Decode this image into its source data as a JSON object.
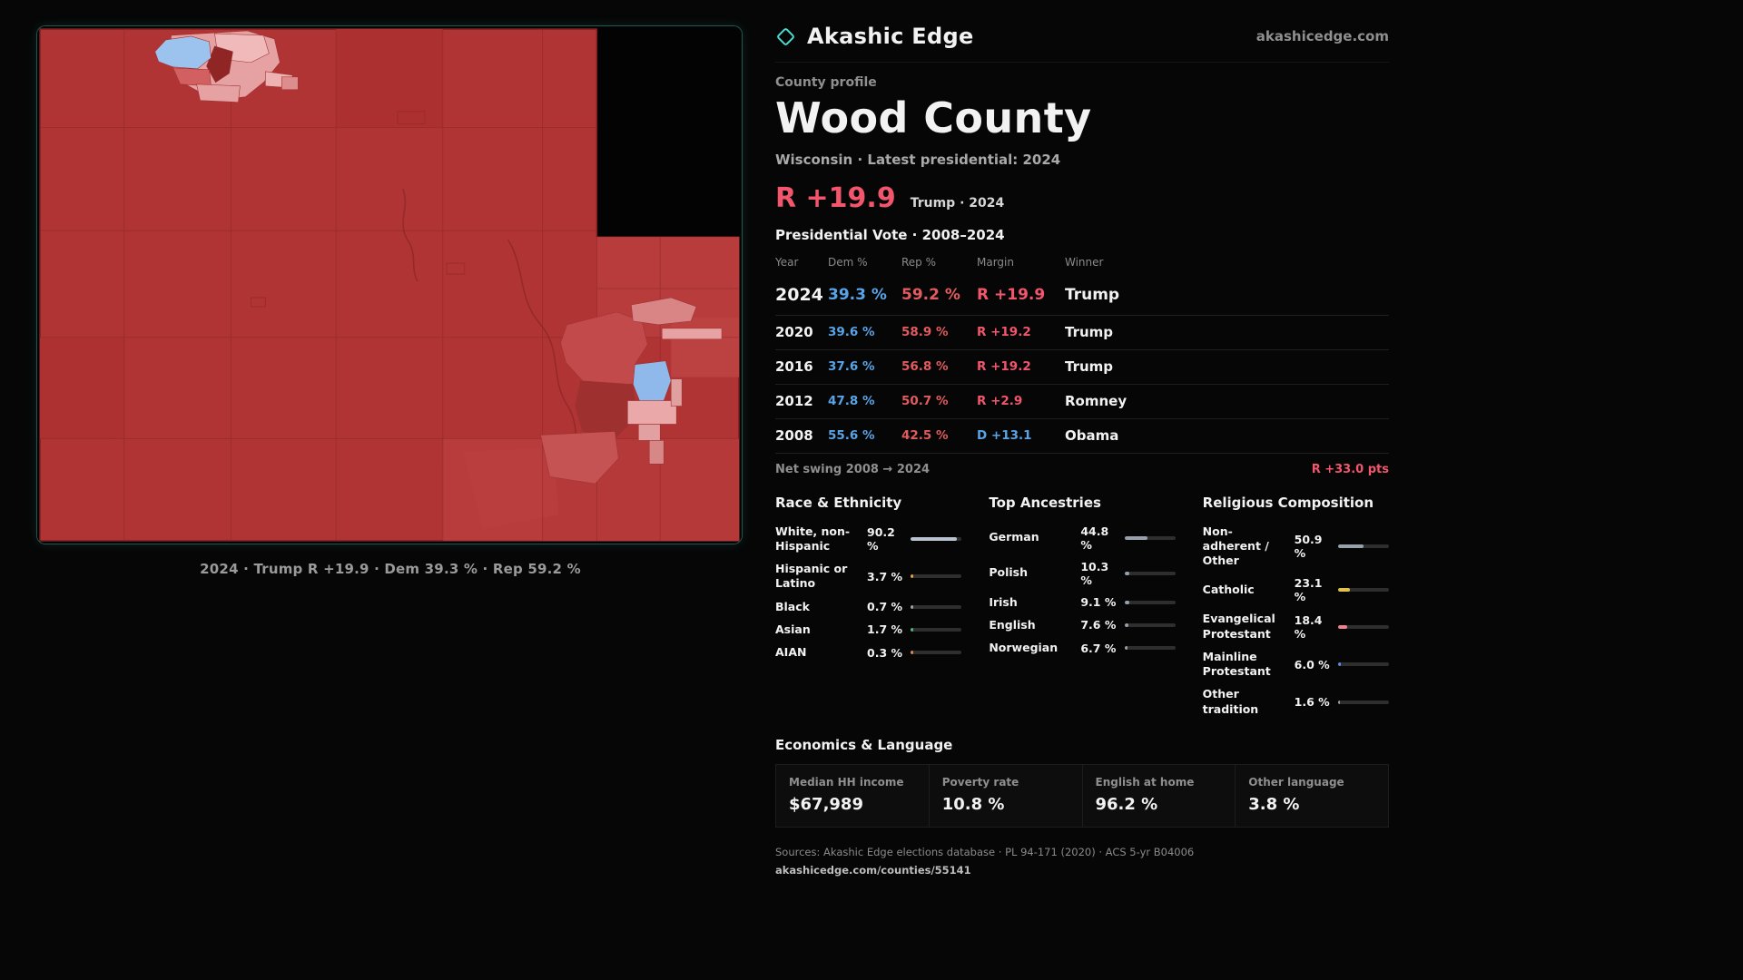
{
  "theme": {
    "bg": "#060606",
    "accent_red": "#f2566c",
    "dem_blue": "#58a4e8",
    "rep_red": "#e25b5e",
    "teal": "#49ded2",
    "muted": "#8f8f8f"
  },
  "header": {
    "brand": "Akashic Edge",
    "site": "akashicedge.com"
  },
  "profile": {
    "kicker": "County profile",
    "title": "Wood County",
    "subtitle": "Wisconsin · Latest presidential: 2024",
    "headline_margin": "R +19.9",
    "headline_note": "Trump · 2024"
  },
  "map": {
    "caption": "2024 · Trump R +19.9 · Dem 39.3 % · Rep 59.2 %"
  },
  "vote_table": {
    "title": "Presidential Vote · 2008–2024",
    "columns": [
      "Year",
      "Dem %",
      "Rep %",
      "Margin",
      "Winner"
    ],
    "rows": [
      {
        "year": "2024",
        "dem": "39.3 %",
        "rep": "59.2 %",
        "margin": "R +19.9",
        "winner": "Trump"
      },
      {
        "year": "2020",
        "dem": "39.6 %",
        "rep": "58.9 %",
        "margin": "R +19.2",
        "winner": "Trump"
      },
      {
        "year": "2016",
        "dem": "37.6 %",
        "rep": "56.8 %",
        "margin": "R +19.2",
        "winner": "Trump"
      },
      {
        "year": "2012",
        "dem": "47.8 %",
        "rep": "50.7 %",
        "margin": "R +2.9",
        "winner": "Romney"
      },
      {
        "year": "2008",
        "dem": "55.6 %",
        "rep": "42.5 %",
        "margin": "D +13.1",
        "winner": "Obama"
      }
    ],
    "net_swing_label": "Net swing 2008 → 2024",
    "net_swing_value": "R +33.0 pts"
  },
  "demographics": {
    "race": {
      "title": "Race & Ethnicity",
      "rows": [
        {
          "label": "White, non-Hispanic",
          "value": "90.2 %",
          "pct": 90.2,
          "color": "#b9c3cf"
        },
        {
          "label": "Hispanic or Latino",
          "value": "3.7 %",
          "pct": 3.7,
          "color": "#e2a23f"
        },
        {
          "label": "Black",
          "value": "0.7 %",
          "pct": 0.7,
          "color": "#9aa3ad"
        },
        {
          "label": "Asian",
          "value": "1.7 %",
          "pct": 1.7,
          "color": "#4db87e"
        },
        {
          "label": "AIAN",
          "value": "0.3 %",
          "pct": 0.3,
          "color": "#de8a4a"
        }
      ]
    },
    "ancestries": {
      "title": "Top Ancestries",
      "rows": [
        {
          "label": "German",
          "value": "44.8 %",
          "pct": 44.8,
          "color": "#98a1ab"
        },
        {
          "label": "Polish",
          "value": "10.3 %",
          "pct": 10.3,
          "color": "#98a1ab"
        },
        {
          "label": "Irish",
          "value": "9.1 %",
          "pct": 9.1,
          "color": "#98a1ab"
        },
        {
          "label": "English",
          "value": "7.6 %",
          "pct": 7.6,
          "color": "#98a1ab"
        },
        {
          "label": "Norwegian",
          "value": "6.7 %",
          "pct": 6.7,
          "color": "#98a1ab"
        }
      ]
    },
    "religion": {
      "title": "Religious Composition",
      "rows": [
        {
          "label": "Non-adherent / Other",
          "value": "50.9 %",
          "pct": 50.9,
          "color": "#98a1ab"
        },
        {
          "label": "Catholic",
          "value": "23.1 %",
          "pct": 23.1,
          "color": "#e3c24b"
        },
        {
          "label": "Evangelical Protestant",
          "value": "18.4 %",
          "pct": 18.4,
          "color": "#ef8290"
        },
        {
          "label": "Mainline Protestant",
          "value": "6.0 %",
          "pct": 6.0,
          "color": "#5b8fe3"
        },
        {
          "label": "Other tradition",
          "value": "1.6 %",
          "pct": 1.6,
          "color": "#98a1ab"
        }
      ]
    }
  },
  "economics": {
    "title": "Economics & Language",
    "stats": [
      {
        "label": "Median HH income",
        "value": "$67,989"
      },
      {
        "label": "Poverty rate",
        "value": "10.8 %"
      },
      {
        "label": "English at home",
        "value": "96.2 %"
      },
      {
        "label": "Other language",
        "value": "3.8 %"
      }
    ]
  },
  "footer": {
    "sources": "Sources: Akashic Edge elections database · PL 94-171 (2020) · ACS 5-yr B04006",
    "permalink": "akashicedge.com/counties/55141"
  }
}
